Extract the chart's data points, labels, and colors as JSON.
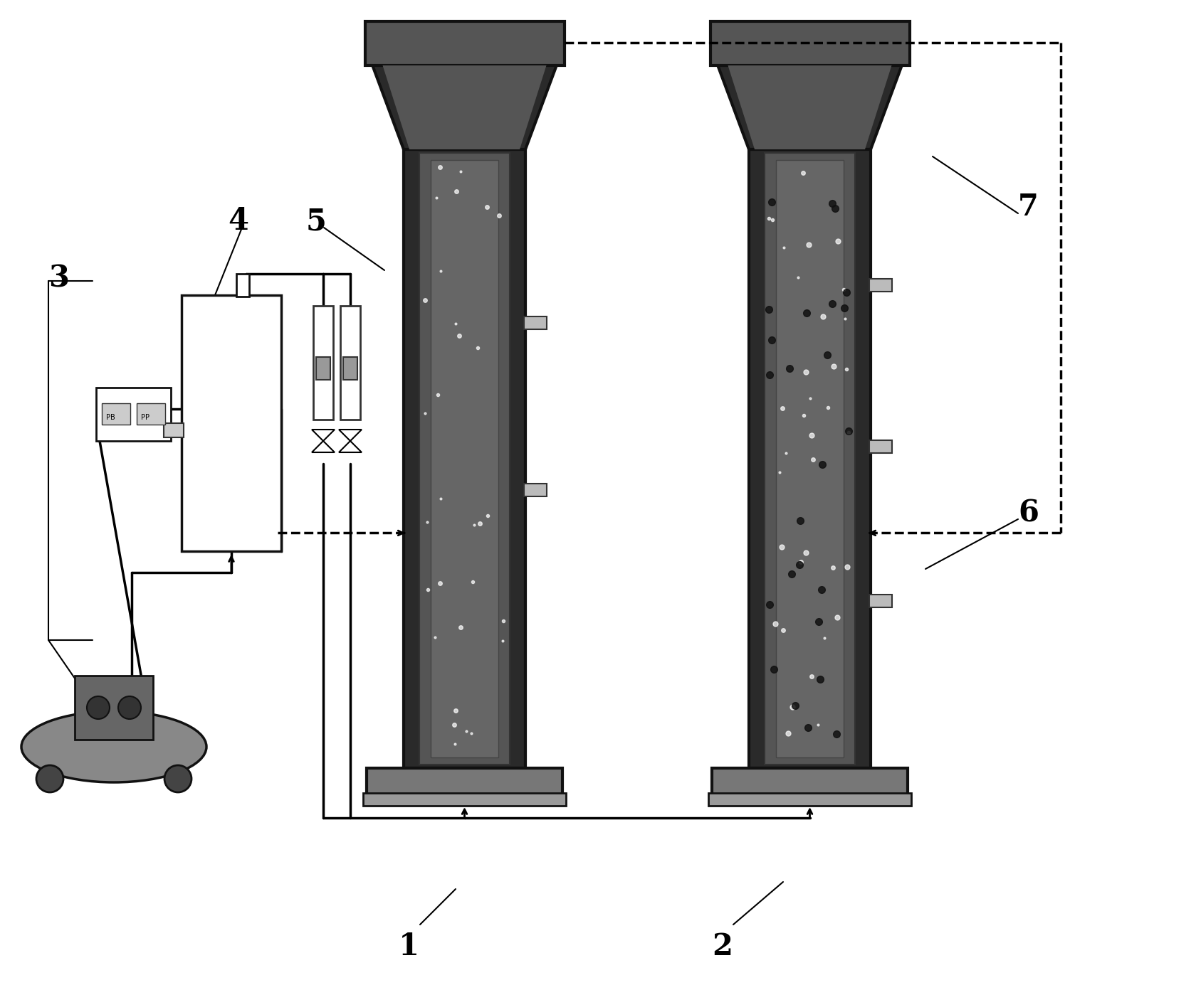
{
  "bg_color": "#ffffff",
  "col_dark": "#2a2a2a",
  "col_medium": "#555555",
  "col_light": "#888888",
  "col_inner": "#444444",
  "base_gray": "#777777",
  "funnel_dark": "#333333",
  "compressor_gray": "#666666",
  "tank_fill": "#ffffff",
  "port_gray": "#bbbbbb",
  "font_size_labels": 30,
  "lw_main": 2.0,
  "lw_col": 2.5
}
